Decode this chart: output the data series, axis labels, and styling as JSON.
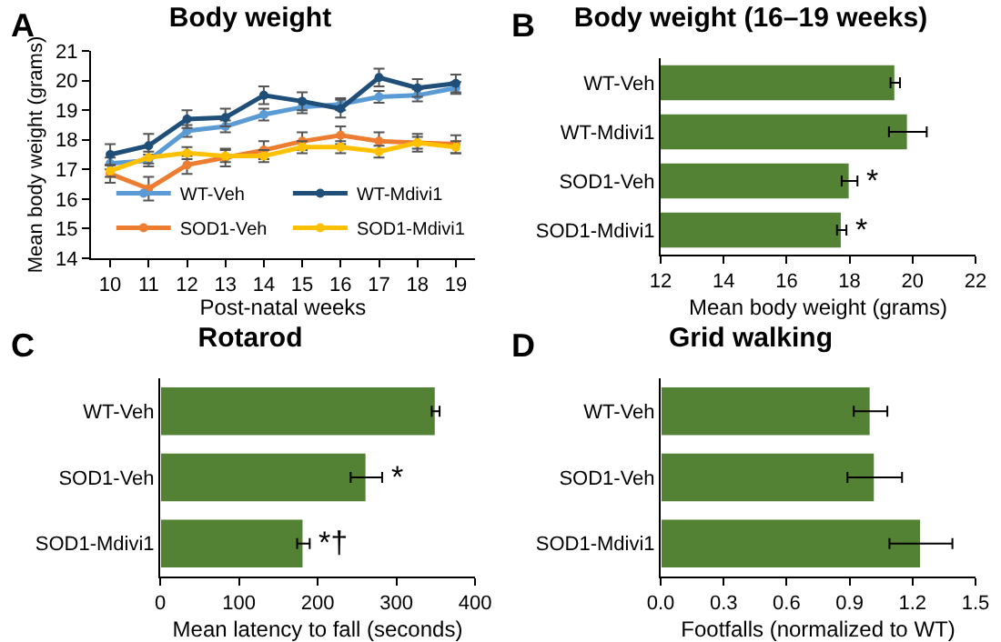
{
  "chart_data": [
    {
      "type": "line",
      "title": "Body weight",
      "xlabel": "Post-natal weeks",
      "ylabel": "Mean body weight (grams)",
      "annotations": [
        "A"
      ],
      "x": [
        10,
        11,
        12,
        13,
        14,
        15,
        16,
        17,
        18,
        19
      ],
      "xlim": [
        9.5,
        19.5
      ],
      "xticks": [
        10,
        11,
        12,
        13,
        14,
        15,
        16,
        17,
        18,
        19
      ],
      "ylim": [
        14,
        21
      ],
      "yticks": [
        14,
        15,
        16,
        17,
        18,
        19,
        20,
        21
      ],
      "grid": false,
      "legend": "bottom right",
      "marker": "circle",
      "line_style": "solid",
      "series": [
        {
          "name": "WT-Veh",
          "color": "#5b9bd5",
          "values": [
            17.2,
            17.3,
            18.3,
            18.45,
            18.85,
            19.1,
            19.2,
            19.45,
            19.5,
            19.75
          ],
          "errors": [
            0.2,
            0.2,
            0.2,
            0.2,
            0.2,
            0.2,
            0.2,
            0.2,
            0.2,
            0.2
          ]
        },
        {
          "name": "WT-Mdivi1",
          "color": "#1f4e79",
          "values": [
            17.5,
            17.8,
            18.7,
            18.75,
            19.5,
            19.3,
            19.05,
            20.1,
            19.75,
            19.9
          ],
          "errors": [
            0.35,
            0.4,
            0.3,
            0.3,
            0.3,
            0.3,
            0.3,
            0.3,
            0.3,
            0.3
          ]
        },
        {
          "name": "SOD1-Veh",
          "color": "#ed7d31",
          "values": [
            16.85,
            16.35,
            17.15,
            17.4,
            17.65,
            17.95,
            18.15,
            17.95,
            17.9,
            17.85
          ],
          "errors": [
            0.3,
            0.4,
            0.3,
            0.3,
            0.3,
            0.3,
            0.3,
            0.3,
            0.3,
            0.3
          ]
        },
        {
          "name": "SOD1-Mdivi1",
          "color": "#ffc000",
          "values": [
            16.95,
            17.4,
            17.55,
            17.45,
            17.45,
            17.75,
            17.75,
            17.6,
            17.9,
            17.75
          ],
          "errors": [
            0.2,
            0.2,
            0.2,
            0.2,
            0.2,
            0.2,
            0.2,
            0.2,
            0.2,
            0.2
          ]
        }
      ]
    },
    {
      "type": "bar",
      "orientation": "horizontal",
      "title": "Body weight (16–19 weeks)",
      "xlabel": "Mean body weight (grams)",
      "annotations": [
        "B",
        {
          "text": "*",
          "x": 18.0,
          "y": "SOD1-Veh"
        },
        {
          "text": "*",
          "x": 17.75,
          "y": "SOD1-Mdivi1"
        }
      ],
      "categories": [
        "WT-Veh",
        "WT-Mdivi1",
        "SOD1-Veh",
        "SOD1-Mdivi1"
      ],
      "values": [
        19.45,
        19.85,
        18.0,
        17.75
      ],
      "errors": [
        0.15,
        0.6,
        0.25,
        0.15
      ],
      "color": "#548235",
      "xlim": [
        12,
        22
      ],
      "xticks": [
        12,
        14,
        16,
        18,
        20,
        22
      ],
      "grid": false,
      "legend": false
    },
    {
      "type": "bar",
      "orientation": "horizontal",
      "title": "Rotarod",
      "xlabel": "Mean latency to fall (seconds)",
      "annotations": [
        "C",
        {
          "text": "*",
          "x": 262,
          "y": "SOD1-Veh"
        },
        {
          "text": "*†",
          "x": 182,
          "y": "SOD1-Mdivi1"
        }
      ],
      "categories": [
        "WT-Veh",
        "SOD1-Veh",
        "SOD1-Mdivi1"
      ],
      "values": [
        350,
        262,
        182
      ],
      "errors": [
        5,
        20,
        8
      ],
      "color": "#548235",
      "xlim": [
        0,
        400
      ],
      "xticks": [
        0,
        100,
        200,
        300,
        400
      ],
      "grid": false,
      "legend": false
    },
    {
      "type": "bar",
      "orientation": "horizontal",
      "title": "Grid walking",
      "xlabel": "Footfalls (normalized to WT)",
      "annotations": [
        "D"
      ],
      "categories": [
        "WT-Veh",
        "SOD1-Veh",
        "SOD1-Mdivi1"
      ],
      "values": [
        1.0,
        1.02,
        1.24
      ],
      "errors": [
        0.08,
        0.13,
        0.15
      ],
      "color": "#548235",
      "xlim": [
        0,
        1.5
      ],
      "xticks": [
        {
          "value": 0,
          "label": "0.0"
        },
        0.3,
        0.6,
        0.9,
        1.2,
        1.5
      ],
      "grid": false,
      "legend": false
    }
  ]
}
